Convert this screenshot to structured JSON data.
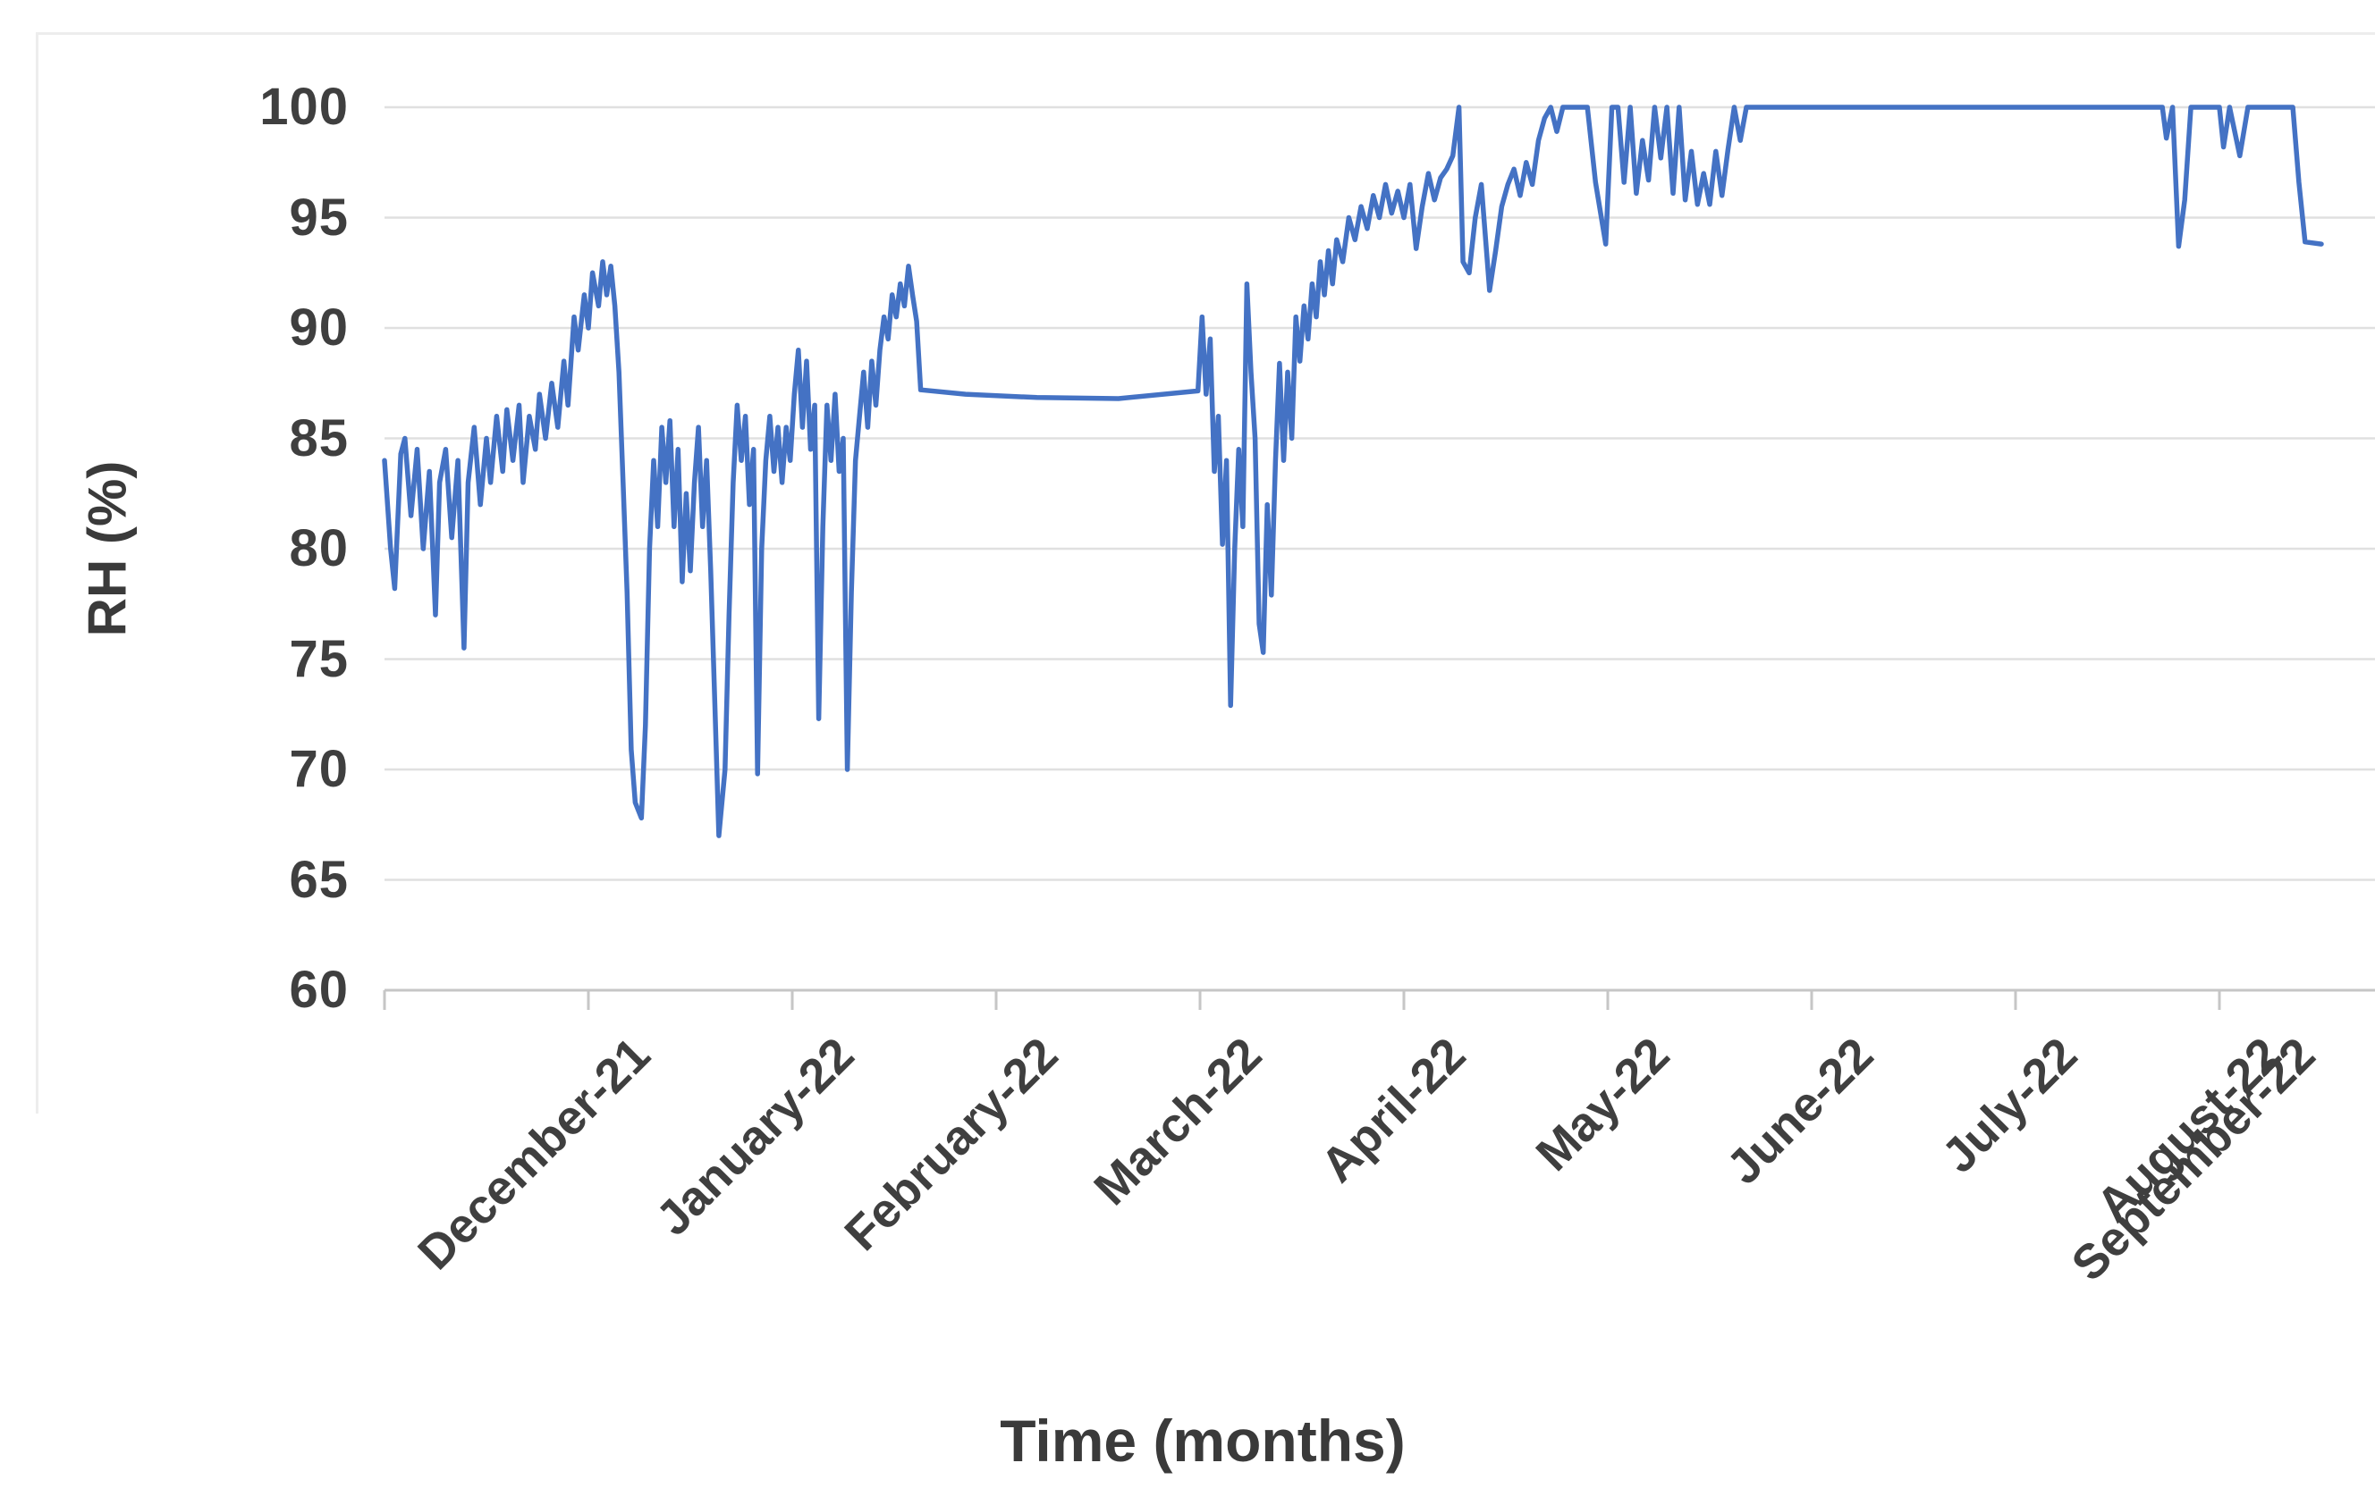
{
  "chart_data": {
    "type": "line",
    "title": "",
    "xlabel": "Time (months)",
    "ylabel": "RH (%)",
    "x_categories": [
      "December-21",
      "January-22",
      "February-22",
      "March-22",
      "April-22",
      "May-22",
      "June-22",
      "July-22",
      "August-22",
      "September-22"
    ],
    "x_unit": "months_from_start_of_december_2021",
    "yticks": [
      100,
      95,
      90,
      85,
      80,
      75,
      70,
      65,
      60
    ],
    "ylim": [
      60,
      100
    ],
    "grid": "horizontal",
    "legend": "none",
    "series": [
      {
        "name": "RH",
        "color": "#4472C4",
        "points": [
          [
            0.0,
            84
          ],
          [
            0.03,
            80
          ],
          [
            0.05,
            78.2
          ],
          [
            0.08,
            84.3
          ],
          [
            0.1,
            85
          ],
          [
            0.13,
            81.5
          ],
          [
            0.16,
            84.5
          ],
          [
            0.19,
            80
          ],
          [
            0.22,
            83.5
          ],
          [
            0.25,
            77
          ],
          [
            0.27,
            83
          ],
          [
            0.3,
            84.5
          ],
          [
            0.33,
            80.5
          ],
          [
            0.36,
            84
          ],
          [
            0.39,
            75.5
          ],
          [
            0.41,
            83
          ],
          [
            0.44,
            85.5
          ],
          [
            0.47,
            82
          ],
          [
            0.5,
            85
          ],
          [
            0.52,
            83
          ],
          [
            0.55,
            86
          ],
          [
            0.58,
            83.5
          ],
          [
            0.6,
            86.3
          ],
          [
            0.63,
            84
          ],
          [
            0.66,
            86.5
          ],
          [
            0.68,
            83
          ],
          [
            0.71,
            86
          ],
          [
            0.74,
            84.5
          ],
          [
            0.76,
            87
          ],
          [
            0.79,
            85
          ],
          [
            0.82,
            87.5
          ],
          [
            0.85,
            85.5
          ],
          [
            0.88,
            88.5
          ],
          [
            0.9,
            86.5
          ],
          [
            0.93,
            90.5
          ],
          [
            0.95,
            89
          ],
          [
            0.98,
            91.5
          ],
          [
            1.0,
            90
          ],
          [
            1.02,
            92.5
          ],
          [
            1.05,
            91
          ],
          [
            1.07,
            93
          ],
          [
            1.09,
            91.5
          ],
          [
            1.11,
            92.8
          ],
          [
            1.13,
            91
          ],
          [
            1.15,
            88
          ],
          [
            1.17,
            83
          ],
          [
            1.19,
            78
          ],
          [
            1.21,
            70.9
          ],
          [
            1.23,
            68.5
          ],
          [
            1.26,
            67.8
          ],
          [
            1.28,
            72
          ],
          [
            1.3,
            80
          ],
          [
            1.32,
            84
          ],
          [
            1.34,
            81
          ],
          [
            1.36,
            85.5
          ],
          [
            1.38,
            83
          ],
          [
            1.4,
            85.8
          ],
          [
            1.42,
            81
          ],
          [
            1.44,
            84.5
          ],
          [
            1.46,
            78.5
          ],
          [
            1.48,
            82.5
          ],
          [
            1.5,
            79
          ],
          [
            1.52,
            83
          ],
          [
            1.54,
            85.5
          ],
          [
            1.56,
            81
          ],
          [
            1.58,
            84
          ],
          [
            1.6,
            79
          ],
          [
            1.62,
            73
          ],
          [
            1.64,
            67
          ],
          [
            1.67,
            70
          ],
          [
            1.69,
            77
          ],
          [
            1.71,
            83
          ],
          [
            1.73,
            86.5
          ],
          [
            1.75,
            84
          ],
          [
            1.77,
            86
          ],
          [
            1.79,
            82
          ],
          [
            1.81,
            84.5
          ],
          [
            1.83,
            69.8
          ],
          [
            1.85,
            80
          ],
          [
            1.87,
            84
          ],
          [
            1.89,
            86
          ],
          [
            1.91,
            83.5
          ],
          [
            1.93,
            85.5
          ],
          [
            1.95,
            83
          ],
          [
            1.97,
            85.5
          ],
          [
            1.99,
            84
          ],
          [
            2.01,
            87
          ],
          [
            2.03,
            89
          ],
          [
            2.05,
            85.5
          ],
          [
            2.07,
            88.5
          ],
          [
            2.09,
            84.5
          ],
          [
            2.11,
            86.5
          ],
          [
            2.13,
            72.3
          ],
          [
            2.15,
            81
          ],
          [
            2.17,
            86.5
          ],
          [
            2.19,
            84
          ],
          [
            2.21,
            87
          ],
          [
            2.23,
            83.5
          ],
          [
            2.25,
            85
          ],
          [
            2.27,
            70
          ],
          [
            2.29,
            78
          ],
          [
            2.31,
            84
          ],
          [
            2.33,
            86
          ],
          [
            2.35,
            88
          ],
          [
            2.37,
            85.5
          ],
          [
            2.39,
            88.5
          ],
          [
            2.41,
            86.5
          ],
          [
            2.43,
            89
          ],
          [
            2.45,
            90.5
          ],
          [
            2.47,
            89.5
          ],
          [
            2.49,
            91.5
          ],
          [
            2.51,
            90.5
          ],
          [
            2.53,
            92
          ],
          [
            2.55,
            91
          ],
          [
            2.57,
            92.8
          ],
          [
            2.59,
            91.5
          ],
          [
            2.61,
            90.3
          ],
          [
            2.63,
            87.2
          ],
          [
            2.85,
            87.0
          ],
          [
            3.2,
            86.85
          ],
          [
            3.6,
            86.8
          ],
          [
            3.99,
            87.15
          ],
          [
            4.01,
            90.5
          ],
          [
            4.03,
            87
          ],
          [
            4.05,
            89.5
          ],
          [
            4.07,
            83.5
          ],
          [
            4.09,
            86
          ],
          [
            4.11,
            80.2
          ],
          [
            4.13,
            84
          ],
          [
            4.15,
            72.9
          ],
          [
            4.17,
            80
          ],
          [
            4.19,
            84.5
          ],
          [
            4.21,
            81
          ],
          [
            4.23,
            92
          ],
          [
            4.25,
            88
          ],
          [
            4.27,
            85
          ],
          [
            4.29,
            76.6
          ],
          [
            4.31,
            75.3
          ],
          [
            4.33,
            82
          ],
          [
            4.35,
            77.9
          ],
          [
            4.37,
            84
          ],
          [
            4.39,
            88.4
          ],
          [
            4.41,
            84
          ],
          [
            4.43,
            88
          ],
          [
            4.45,
            85
          ],
          [
            4.47,
            90.5
          ],
          [
            4.49,
            88.5
          ],
          [
            4.51,
            91
          ],
          [
            4.53,
            89.5
          ],
          [
            4.55,
            92
          ],
          [
            4.57,
            90.5
          ],
          [
            4.59,
            93
          ],
          [
            4.61,
            91.5
          ],
          [
            4.63,
            93.5
          ],
          [
            4.65,
            92
          ],
          [
            4.67,
            94
          ],
          [
            4.7,
            93
          ],
          [
            4.73,
            95
          ],
          [
            4.76,
            94
          ],
          [
            4.79,
            95.5
          ],
          [
            4.82,
            94.5
          ],
          [
            4.85,
            96
          ],
          [
            4.88,
            95
          ],
          [
            4.91,
            96.5
          ],
          [
            4.94,
            95.2
          ],
          [
            4.97,
            96.2
          ],
          [
            5.0,
            95
          ],
          [
            5.03,
            96.5
          ],
          [
            5.06,
            93.6
          ],
          [
            5.09,
            95.5
          ],
          [
            5.12,
            97
          ],
          [
            5.15,
            95.8
          ],
          [
            5.18,
            96.8
          ],
          [
            5.21,
            97.2
          ],
          [
            5.24,
            97.8
          ],
          [
            5.27,
            100
          ],
          [
            5.29,
            93
          ],
          [
            5.32,
            92.5
          ],
          [
            5.35,
            95
          ],
          [
            5.38,
            96.5
          ],
          [
            5.42,
            91.7
          ],
          [
            5.45,
            93.5
          ],
          [
            5.48,
            95.5
          ],
          [
            5.51,
            96.5
          ],
          [
            5.54,
            97.2
          ],
          [
            5.57,
            96
          ],
          [
            5.6,
            97.5
          ],
          [
            5.63,
            96.5
          ],
          [
            5.66,
            98.5
          ],
          [
            5.69,
            99.5
          ],
          [
            5.72,
            100
          ],
          [
            5.75,
            98.9
          ],
          [
            5.78,
            100
          ],
          [
            5.82,
            100
          ],
          [
            5.86,
            100
          ],
          [
            5.9,
            100
          ],
          [
            5.94,
            96.6
          ],
          [
            5.99,
            93.8
          ],
          [
            6.02,
            100
          ],
          [
            6.05,
            100
          ],
          [
            6.08,
            96.6
          ],
          [
            6.11,
            100
          ],
          [
            6.14,
            96.1
          ],
          [
            6.17,
            98.5
          ],
          [
            6.2,
            96.7
          ],
          [
            6.23,
            100
          ],
          [
            6.26,
            97.7
          ],
          [
            6.29,
            100
          ],
          [
            6.32,
            96.1
          ],
          [
            6.35,
            100
          ],
          [
            6.38,
            95.8
          ],
          [
            6.41,
            98
          ],
          [
            6.44,
            95.6
          ],
          [
            6.47,
            97
          ],
          [
            6.5,
            95.6
          ],
          [
            6.53,
            98
          ],
          [
            6.56,
            96
          ],
          [
            6.59,
            98.1
          ],
          [
            6.62,
            100
          ],
          [
            6.65,
            98.5
          ],
          [
            6.68,
            100
          ],
          [
            6.74,
            100
          ],
          [
            7.0,
            100
          ],
          [
            7.5,
            100
          ],
          [
            8.0,
            100
          ],
          [
            8.5,
            100
          ],
          [
            8.72,
            100
          ],
          [
            8.74,
            98.6
          ],
          [
            8.77,
            100
          ],
          [
            8.8,
            93.7
          ],
          [
            8.83,
            95.8
          ],
          [
            8.86,
            100
          ],
          [
            8.92,
            100
          ],
          [
            9.0,
            100
          ],
          [
            9.02,
            98.2
          ],
          [
            9.05,
            100
          ],
          [
            9.1,
            97.8
          ],
          [
            9.14,
            100
          ],
          [
            9.22,
            100
          ],
          [
            9.3,
            100
          ],
          [
            9.36,
            100
          ],
          [
            9.39,
            96.6
          ],
          [
            9.42,
            93.9
          ],
          [
            9.5,
            93.8
          ]
        ]
      }
    ]
  },
  "colors": {
    "line": "#4472C4",
    "gridline": "#E0E0E0",
    "axis": "#C6C6C6",
    "tick": "#C6C6C6",
    "tick_label": "#3F3F3F",
    "frame": "#EDEDED",
    "background": "#FFFFFF"
  }
}
